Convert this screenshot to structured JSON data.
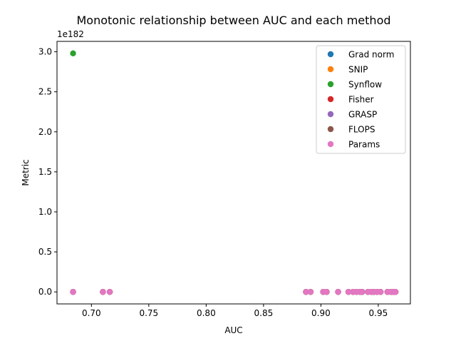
{
  "chart_data": {
    "type": "scatter",
    "title": "Monotonic relationship between AUC and each method",
    "xlabel": "AUC",
    "ylabel": "Metric",
    "y_offset_text": "1e182",
    "xlim": [
      0.67,
      0.978
    ],
    "ylim": [
      -0.15,
      3.13
    ],
    "x_ticks": [
      0.7,
      0.75,
      0.8,
      0.85,
      0.9,
      0.95
    ],
    "x_tick_labels": [
      "0.70",
      "0.75",
      "0.80",
      "0.85",
      "0.90",
      "0.95"
    ],
    "y_ticks": [
      0.0,
      0.5,
      1.0,
      1.5,
      2.0,
      2.5,
      3.0
    ],
    "y_tick_labels": [
      "0.0",
      "0.5",
      "1.0",
      "1.5",
      "2.0",
      "2.5",
      "3.0"
    ],
    "grid": false,
    "legend_position": "upper-right",
    "auc_values": [
      0.684,
      0.71,
      0.716,
      0.887,
      0.891,
      0.902,
      0.905,
      0.915,
      0.924,
      0.928,
      0.931,
      0.934,
      0.936,
      0.941,
      0.944,
      0.946,
      0.949,
      0.952,
      0.958,
      0.961,
      0.963,
      0.965
    ],
    "series": [
      {
        "name": "Grad norm",
        "color": "#1f77b4",
        "values": [
          0,
          0,
          0,
          0,
          0,
          0,
          0,
          0,
          0,
          0,
          0,
          0,
          0,
          0,
          0,
          0,
          0,
          0,
          0,
          0,
          0,
          0
        ]
      },
      {
        "name": "SNIP",
        "color": "#ff7f0e",
        "values": [
          0,
          0,
          0,
          0,
          0,
          0,
          0,
          0,
          0,
          0,
          0,
          0,
          0,
          0,
          0,
          0,
          0,
          0,
          0,
          0,
          0,
          0
        ]
      },
      {
        "name": "Synflow",
        "color": "#2ca02c",
        "values": [
          2.98,
          0,
          0,
          0,
          0,
          0,
          0,
          0,
          0,
          0,
          0,
          0,
          0,
          0,
          0,
          0,
          0,
          0,
          0,
          0,
          0,
          0
        ]
      },
      {
        "name": "Fisher",
        "color": "#d62728",
        "values": [
          0,
          0,
          0,
          0,
          0,
          0,
          0,
          0,
          0,
          0,
          0,
          0,
          0,
          0,
          0,
          0,
          0,
          0,
          0,
          0,
          0,
          0
        ]
      },
      {
        "name": "GRASP",
        "color": "#9467bd",
        "values": [
          0,
          0,
          0,
          0,
          0,
          0,
          0,
          0,
          0,
          0,
          0,
          0,
          0,
          0,
          0,
          0,
          0,
          0,
          0,
          0,
          0,
          0
        ]
      },
      {
        "name": "FLOPS",
        "color": "#8c564b",
        "values": [
          0,
          0,
          0,
          0,
          0,
          0,
          0,
          0,
          0,
          0,
          0,
          0,
          0,
          0,
          0,
          0,
          0,
          0,
          0,
          0,
          0,
          0
        ]
      },
      {
        "name": "Params",
        "color": "#e377c2",
        "values": [
          0,
          0,
          0,
          0,
          0,
          0,
          0,
          0,
          0,
          0,
          0,
          0,
          0,
          0,
          0,
          0,
          0,
          0,
          0,
          0,
          0,
          0
        ]
      }
    ]
  }
}
